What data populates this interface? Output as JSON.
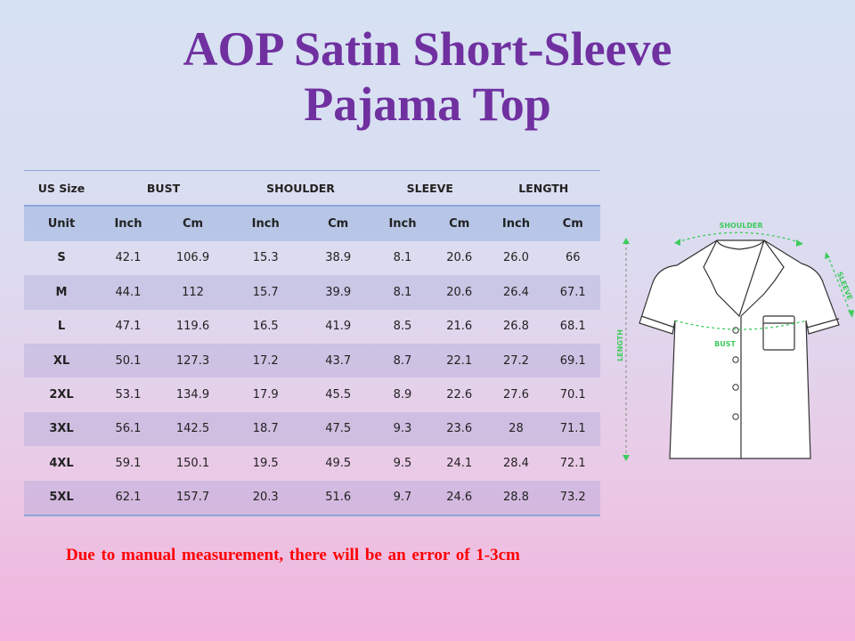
{
  "title_line1": "AOP Satin Short-Sleeve",
  "title_line2": "Pajama Top",
  "table": {
    "header": [
      "US Size",
      "BUST",
      "SHOULDER",
      "SLEEVE",
      "LENGTH"
    ],
    "units": [
      "Unit",
      "Inch",
      "Cm",
      "Inch",
      "Cm",
      "Inch",
      "Cm",
      "Inch",
      "Cm"
    ],
    "rows": [
      [
        "S",
        "42.1",
        "106.9",
        "15.3",
        "38.9",
        "8.1",
        "20.6",
        "26.0",
        "66"
      ],
      [
        "M",
        "44.1",
        "112",
        "15.7",
        "39.9",
        "8.1",
        "20.6",
        "26.4",
        "67.1"
      ],
      [
        "L",
        "47.1",
        "119.6",
        "16.5",
        "41.9",
        "8.5",
        "21.6",
        "26.8",
        "68.1"
      ],
      [
        "XL",
        "50.1",
        "127.3",
        "17.2",
        "43.7",
        "8.7",
        "22.1",
        "27.2",
        "69.1"
      ],
      [
        "2XL",
        "53.1",
        "134.9",
        "17.9",
        "45.5",
        "8.9",
        "22.6",
        "27.6",
        "70.1"
      ],
      [
        "3XL",
        "56.1",
        "142.5",
        "18.7",
        "47.5",
        "9.3",
        "23.6",
        "28",
        "71.1"
      ],
      [
        "4XL",
        "59.1",
        "150.1",
        "19.5",
        "49.5",
        "9.5",
        "24.1",
        "28.4",
        "72.1"
      ],
      [
        "5XL",
        "62.1",
        "157.7",
        "20.3",
        "51.6",
        "9.7",
        "24.6",
        "28.8",
        "73.2"
      ]
    ]
  },
  "diagram": {
    "labels": {
      "shoulder": "SHOULDER",
      "sleeve": "SLEEVE",
      "bust": "BUST",
      "length": "LENGTH"
    },
    "accent_color": "#3ecb5e"
  },
  "note": "Due to manual measurement, there will be an error of 1-3cm",
  "colors": {
    "title": "#7030a0",
    "note": "#ff0000"
  }
}
